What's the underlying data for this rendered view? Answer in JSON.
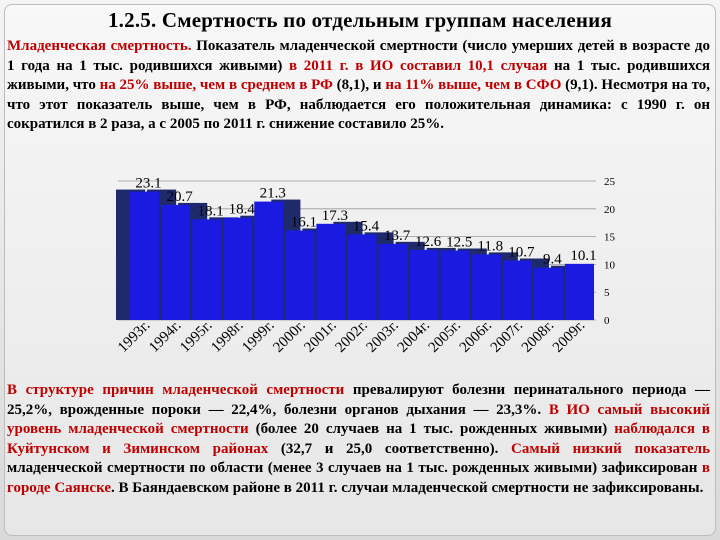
{
  "title": "1.2.5. Смертность по отдельным группам населения",
  "intro": [
    {
      "text": "Младенческая смертность.",
      "red": true
    },
    {
      "text": " Показатель младенческой смертности (число умерших детей в возрасте до 1 года на 1 тыс. родившихся живыми) ",
      "red": false
    },
    {
      "text": "в 2011 г. в ИО составил 10,1 случая",
      "red": true
    },
    {
      "text": " на 1 тыс. родившихся живыми, что ",
      "red": false
    },
    {
      "text": "на 25% выше, чем в среднем в РФ",
      "red": true
    },
    {
      "text": " (8,1), и ",
      "red": false
    },
    {
      "text": "на 11% выше, чем в СФО",
      "red": true
    },
    {
      "text": " (9,1). Несмотря на то, что этот показатель выше, чем в РФ, наблюдается его положительная динамика: с 1990 г. он сократился в 2 раза, а с 2005 по 2011 г. снижение составило 25%.",
      "red": false
    }
  ],
  "causes": [
    {
      "text": "В структуре причин младенческой смертности",
      "red": true
    },
    {
      "text": " превалируют болезни перинатального периода — 25,2%, врожденные пороки — 22,4%, болезни органов дыхания — 23,3%. ",
      "red": false
    },
    {
      "text": "В ИО самый высокий уровень младенческой смертности",
      "red": true
    },
    {
      "text": " (более 20 случаев на 1 тыс. рожденных живыми) ",
      "red": false
    },
    {
      "text": "наблюдался в Куйтунском и Зиминском районах",
      "red": true
    },
    {
      "text": " (32,7 и 25,0 соответственно). ",
      "red": false
    },
    {
      "text": "Самый низкий показатель",
      "red": true
    },
    {
      "text": " младенческой смертности по области (менее 3 случаев на 1 тыс. рожденных живыми) зафиксирован ",
      "red": false
    },
    {
      "text": "в городе Саянске",
      "red": true
    },
    {
      "text": ". В Баяндаевском районе в 2011 г. случаи младенческой смертности не зафиксированы.",
      "red": false
    }
  ],
  "colors": {
    "red": "#c00000",
    "bar": "#1a1ae0",
    "bar_back": "#1f2a6b",
    "text": "#000000"
  },
  "chart_data": {
    "type": "bar",
    "categories": [
      "1993г.",
      "1994г.",
      "1995г.",
      "1998г.",
      "1999г.",
      "2000г.",
      "2001г.",
      "2002г.",
      "2003г.",
      "2004г.",
      "2005г.",
      "2006г.",
      "2007г.",
      "2008г.",
      "2009г."
    ],
    "series": [
      {
        "values": [
          23.1,
          20.7,
          18.1,
          18.4,
          21.3,
          16.1,
          17.3,
          15.4,
          13.7,
          12.6,
          12.5,
          11.8,
          10.7,
          9.4,
          10.1
        ]
      },
      {
        "values": [
          23.1,
          23.1,
          20.7,
          18.1,
          18.4,
          21.3,
          16.1,
          17.3,
          15.4,
          13.7,
          12.6,
          12.5,
          11.8,
          10.7,
          9.4
        ]
      }
    ],
    "data_labels": [
      "23.1",
      "20.7",
      "18.1",
      "18.4",
      "21.3",
      "16.1",
      "17.3",
      "15.4",
      "13.7",
      "12.6",
      "12.5",
      "11.8",
      "10.7",
      "9.4",
      "10.1"
    ],
    "y_ticks": [
      "0",
      "5",
      "10",
      "15",
      "20",
      "25"
    ],
    "ylim": [
      0,
      25
    ],
    "y_axis_side": "right",
    "grid": true
  }
}
